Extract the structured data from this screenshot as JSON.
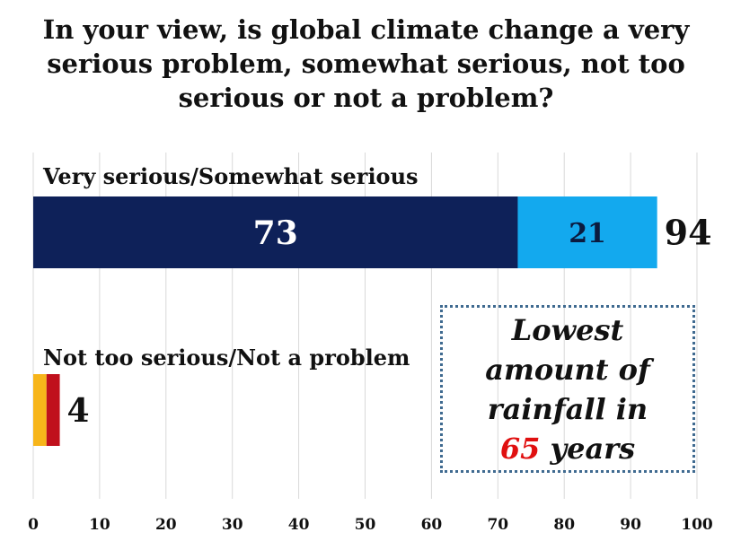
{
  "chart_data": {
    "type": "bar",
    "orientation": "horizontal",
    "stacked": true,
    "title": "In your view, is global climate change a very serious problem, somewhat serious, not too serious or not a problem?",
    "categories": [
      "Very serious/Somewhat serious",
      "Not too serious/Not a problem"
    ],
    "series": [
      {
        "name": "Very serious",
        "color": "#0e2159",
        "values": [
          73,
          null
        ]
      },
      {
        "name": "Somewhat serious",
        "color": "#13a9ee",
        "values": [
          21,
          null
        ]
      },
      {
        "name": "Not too serious",
        "color": "#f7b51a",
        "values": [
          null,
          2
        ]
      },
      {
        "name": "Not a problem",
        "color": "#c0101c",
        "values": [
          null,
          2
        ]
      }
    ],
    "totals": [
      94,
      4
    ],
    "xlim": [
      0,
      100
    ],
    "xticks": [
      0,
      10,
      20,
      30,
      40,
      50,
      60,
      70,
      80,
      90,
      100
    ],
    "grid": true,
    "xlabel": "",
    "ylabel": ""
  },
  "callout": {
    "line1": "Lowest",
    "line2": "amount of",
    "line3": "rainfall in",
    "highlight": "65",
    "line4_rest": " years",
    "highlight_color": "#e01010"
  }
}
